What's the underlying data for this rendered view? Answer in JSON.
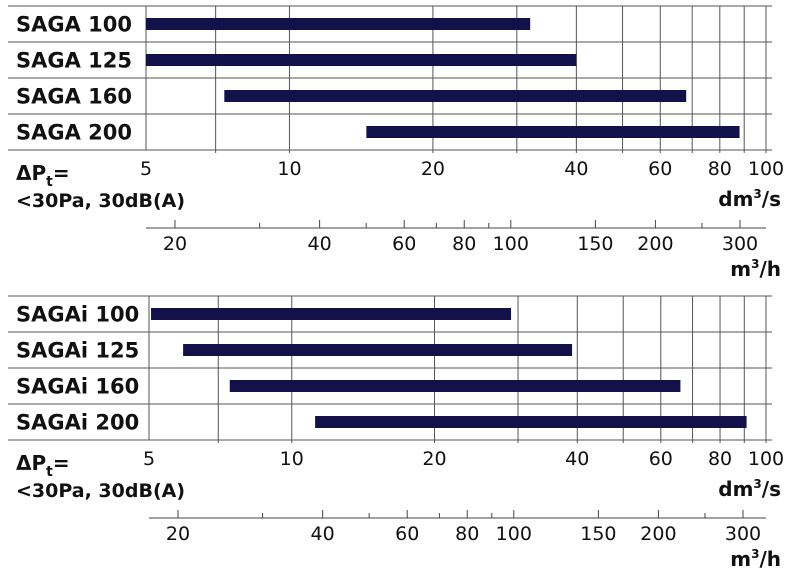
{
  "chart_data": [
    {
      "type": "bar",
      "orientation": "horizontal-range",
      "x_scale": "log",
      "xlim": [
        5,
        100
      ],
      "categories": [
        "SAGA 100",
        "SAGA 125",
        "SAGA 160",
        "SAGA 200"
      ],
      "ranges": [
        [
          5,
          32
        ],
        [
          5,
          40
        ],
        [
          7.3,
          68
        ],
        [
          14.5,
          88
        ]
      ],
      "tick_labels": [
        "5",
        "10",
        "20",
        "40",
        "60",
        "80",
        "100"
      ],
      "tick_values": [
        5,
        10,
        20,
        40,
        60,
        80,
        100
      ],
      "minor_ticks": [
        7,
        30,
        50,
        70,
        90
      ],
      "gridlines": [
        7,
        10,
        20,
        30,
        40,
        50,
        60,
        70,
        80,
        90,
        100
      ],
      "xlabel_base": "dm",
      "xlabel_sup": "3",
      "xlabel_tail": "/s",
      "secondary_axis": {
        "tick_labels": [
          "20",
          "40",
          "60",
          "80",
          "100",
          "150",
          "200",
          "300"
        ],
        "tick_values": [
          20,
          40,
          60,
          80,
          100,
          150,
          200,
          300
        ],
        "minor_ticks": [
          30,
          50,
          70,
          90,
          250,
          350
        ],
        "label_base": "m",
        "label_sup": "3",
        "label_tail": "/h"
      },
      "condition": {
        "symbol": "ΔP",
        "subscript": "t",
        "suffix": "=",
        "line": "<30Pa, 30dB(A)"
      },
      "bar_color": "#12114a"
    },
    {
      "type": "bar",
      "orientation": "horizontal-range",
      "x_scale": "log",
      "xlim": [
        5,
        100
      ],
      "categories": [
        "SAGAi 100",
        "SAGAi 125",
        "SAGAi 160",
        "SAGAi 200"
      ],
      "ranges": [
        [
          5.05,
          29
        ],
        [
          5.9,
          39
        ],
        [
          7.4,
          66
        ],
        [
          11.2,
          91
        ]
      ],
      "tick_labels": [
        "5",
        "10",
        "20",
        "40",
        "60",
        "80",
        "100"
      ],
      "tick_values": [
        5,
        10,
        20,
        40,
        60,
        80,
        100
      ],
      "minor_ticks": [
        7,
        30,
        50,
        70,
        90
      ],
      "gridlines": [
        7,
        10,
        20,
        30,
        40,
        50,
        60,
        70,
        80,
        90,
        100
      ],
      "xlabel_base": "dm",
      "xlabel_sup": "3",
      "xlabel_tail": "/s",
      "secondary_axis": {
        "tick_labels": [
          "20",
          "40",
          "60",
          "80",
          "100",
          "150",
          "200",
          "300"
        ],
        "tick_values": [
          20,
          40,
          60,
          80,
          100,
          150,
          200,
          300
        ],
        "minor_ticks": [
          30,
          50,
          70,
          90,
          250,
          350
        ],
        "label_base": "m",
        "label_sup": "3",
        "label_tail": "/h"
      },
      "condition": {
        "symbol": "ΔP",
        "subscript": "t",
        "suffix": "=",
        "line": "<30Pa, 30dB(A)"
      },
      "bar_color": "#12114a"
    }
  ]
}
